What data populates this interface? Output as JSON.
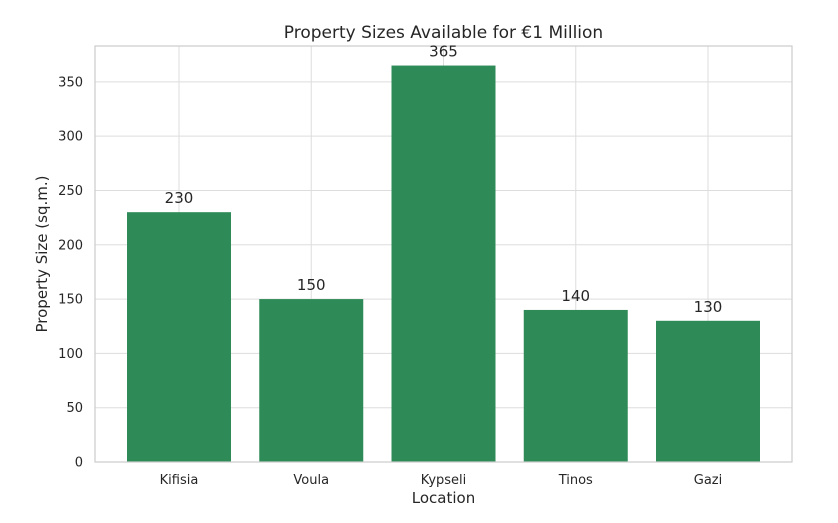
{
  "chart_data": {
    "type": "bar",
    "title": "Property Sizes Available for €1 Million",
    "xlabel": "Location",
    "ylabel": "Property Size (sq.m.)",
    "categories": [
      "Kifisia",
      "Voula",
      "Kypseli",
      "Tinos",
      "Gazi"
    ],
    "values": [
      230,
      150,
      365,
      140,
      130
    ],
    "ylim": [
      0,
      383
    ],
    "yticks": [
      0,
      50,
      100,
      150,
      200,
      250,
      300,
      350
    ],
    "grid": true,
    "legend": "none",
    "bar_color": "#2e8b57"
  }
}
